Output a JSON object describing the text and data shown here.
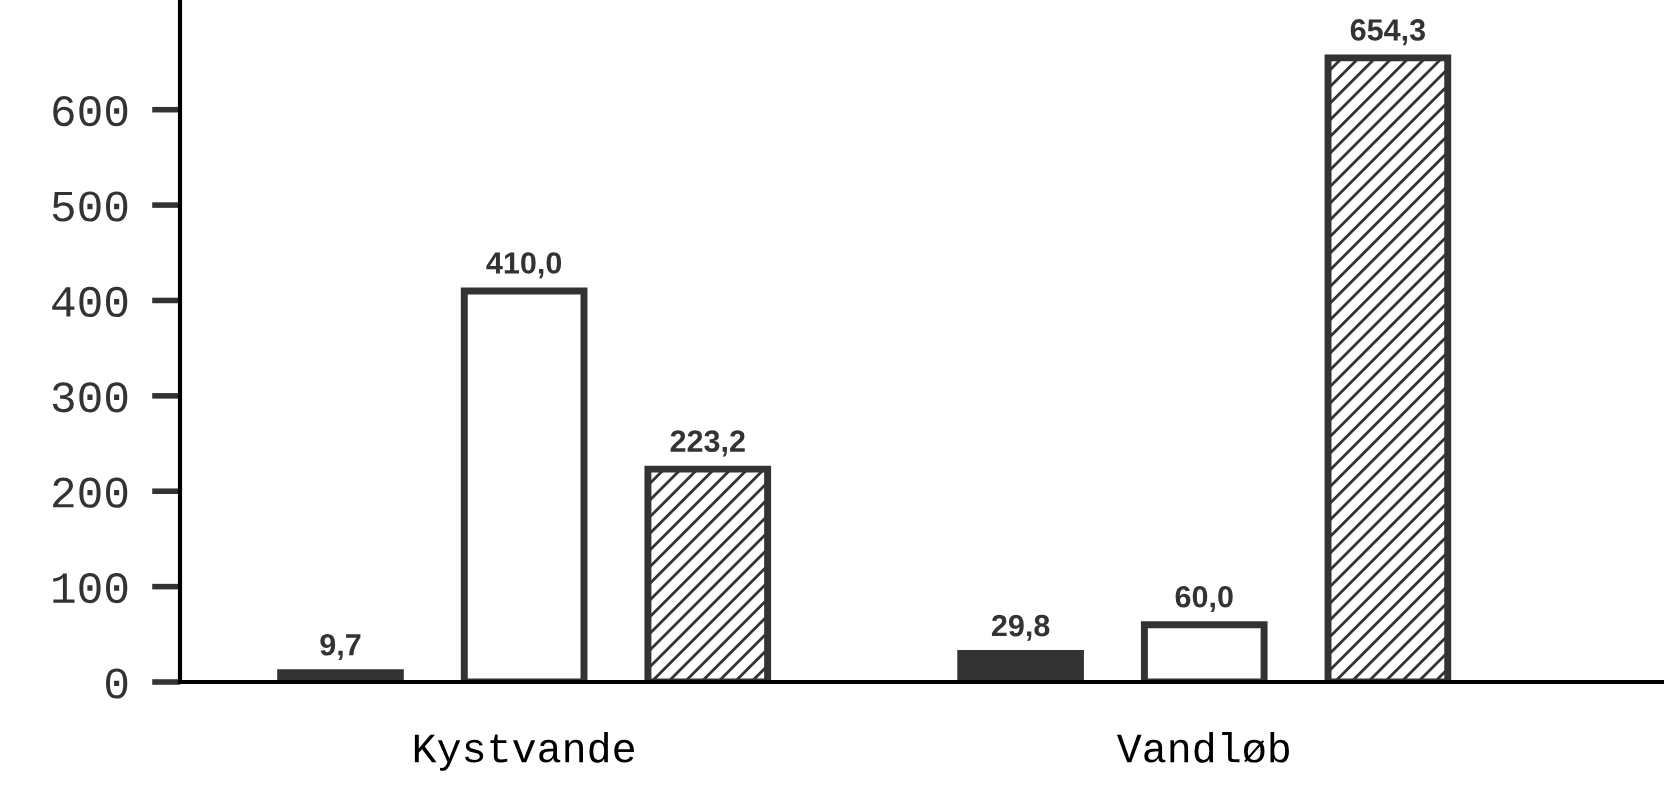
{
  "chart_data": {
    "type": "bar",
    "categories": [
      "Kystvande",
      "Vandløb"
    ],
    "series": [
      {
        "color": "#333333",
        "values": [
          9.7,
          29.8
        ],
        "value_labels": [
          "9,7",
          "29,8"
        ]
      },
      {
        "color": "#ffffff",
        "values": [
          410.0,
          60.0
        ],
        "value_labels": [
          "410,0",
          "60,0"
        ]
      },
      {
        "color": "#333333",
        "values": [
          223.2,
          654.3
        ],
        "value_labels": [
          "223,2",
          "654,3"
        ]
      }
    ],
    "ylim": [
      0,
      715
    ],
    "yticks": [
      0,
      100,
      200,
      300,
      400,
      500,
      600
    ],
    "grid": false,
    "legend": false
  }
}
